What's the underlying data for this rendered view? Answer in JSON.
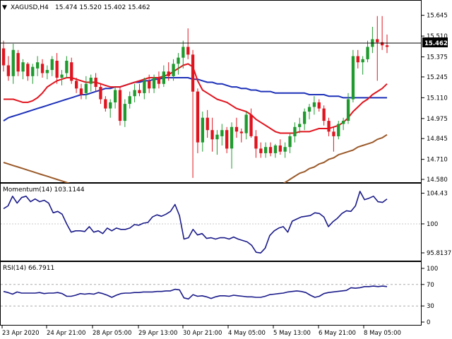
{
  "header": {
    "symbol": "XAGUSD,H4",
    "ohlc": "15.474 15.520 15.402 15.462",
    "dropdown_glyph": "▼"
  },
  "colors": {
    "bull": "#1f9a2e",
    "bear": "#e0141e",
    "sma_blue": "#1d31b8",
    "sma_red": "#e0141e",
    "sma_brown": "#9a5a2a",
    "indicator": "#1a1a8a",
    "grid": "#c8c8c8",
    "price_line": "#000000"
  },
  "price_panel": {
    "current_price": "15.462",
    "y_labels": [
      "15.645",
      "15.510",
      "15.375",
      "15.245",
      "15.110",
      "14.975",
      "14.845",
      "14.710",
      "14.580"
    ]
  },
  "momentum_panel": {
    "label": "Momentum(14) 103.1144",
    "y_labels": [
      "104.43",
      "100",
      "95.8137"
    ]
  },
  "rsi_panel": {
    "label": "RSI(14) 66.7911",
    "y_labels": [
      "100",
      "70",
      "30",
      "0"
    ]
  },
  "x_labels": [
    "23 Apr 2020",
    "24 Apr 21:00",
    "28 Apr 05:00",
    "29 Apr 13:00",
    "30 Apr 21:00",
    "4 May 05:00",
    "5 May 13:00",
    "6 May 21:00",
    "8 May 05:00"
  ],
  "chart_data": [
    {
      "type": "candlestick",
      "title": "XAGUSD,H4",
      "ylim": [
        14.58,
        15.68
      ],
      "candles": [
        [
          15.43,
          15.48,
          15.28,
          15.32
        ],
        [
          15.32,
          15.38,
          15.22,
          15.25
        ],
        [
          15.25,
          15.46,
          15.2,
          15.42
        ],
        [
          15.4,
          15.42,
          15.25,
          15.28
        ],
        [
          15.28,
          15.36,
          15.23,
          15.34
        ],
        [
          15.33,
          15.34,
          15.22,
          15.25
        ],
        [
          15.25,
          15.33,
          15.2,
          15.31
        ],
        [
          15.3,
          15.38,
          15.25,
          15.34
        ],
        [
          15.33,
          15.36,
          15.24,
          15.27
        ],
        [
          15.27,
          15.32,
          15.23,
          15.29
        ],
        [
          15.29,
          15.38,
          15.25,
          15.36
        ],
        [
          15.35,
          15.4,
          15.2,
          15.24
        ],
        [
          15.24,
          15.29,
          15.19,
          15.26
        ],
        [
          15.27,
          15.38,
          15.24,
          15.35
        ],
        [
          15.34,
          15.37,
          15.2,
          15.22
        ],
        [
          15.22,
          15.24,
          15.14,
          15.17
        ],
        [
          15.17,
          15.2,
          15.1,
          15.13
        ],
        [
          15.14,
          15.25,
          15.1,
          15.2
        ],
        [
          15.2,
          15.26,
          15.15,
          15.24
        ],
        [
          15.24,
          15.27,
          15.15,
          15.18
        ],
        [
          15.18,
          15.2,
          15.07,
          15.1
        ],
        [
          15.1,
          15.12,
          15.02,
          15.04
        ],
        [
          15.04,
          15.1,
          14.98,
          15.08
        ],
        [
          15.08,
          15.18,
          15.04,
          15.16
        ],
        [
          15.16,
          15.18,
          14.93,
          14.96
        ],
        [
          14.96,
          15.1,
          14.92,
          15.07
        ],
        [
          15.07,
          15.15,
          15.04,
          15.12
        ],
        [
          15.12,
          15.2,
          15.08,
          15.16
        ],
        [
          15.16,
          15.2,
          15.12,
          15.14
        ],
        [
          15.14,
          15.24,
          15.1,
          15.22
        ],
        [
          15.22,
          15.26,
          15.14,
          15.17
        ],
        [
          15.17,
          15.26,
          15.14,
          15.24
        ],
        [
          15.24,
          15.28,
          15.17,
          15.2
        ],
        [
          15.2,
          15.32,
          15.18,
          15.28
        ],
        [
          15.28,
          15.34,
          15.22,
          15.25
        ],
        [
          15.25,
          15.36,
          15.22,
          15.33
        ],
        [
          15.33,
          15.4,
          15.26,
          15.37
        ],
        [
          15.37,
          15.48,
          15.3,
          15.44
        ],
        [
          15.44,
          15.56,
          15.36,
          15.39
        ],
        [
          15.39,
          15.42,
          14.59,
          15.15
        ],
        [
          15.15,
          15.17,
          14.75,
          14.82
        ],
        [
          14.82,
          15.02,
          14.76,
          14.98
        ],
        [
          14.98,
          15.03,
          14.85,
          14.9
        ],
        [
          14.9,
          14.98,
          14.76,
          14.84
        ],
        [
          14.84,
          14.9,
          14.74,
          14.87
        ],
        [
          14.86,
          14.94,
          14.8,
          14.9
        ],
        [
          14.9,
          14.92,
          14.75,
          14.78
        ],
        [
          14.78,
          14.95,
          14.65,
          14.92
        ],
        [
          14.92,
          14.98,
          14.85,
          14.89
        ],
        [
          14.89,
          14.91,
          14.82,
          14.88
        ],
        [
          14.88,
          15.02,
          14.84,
          15.0
        ],
        [
          15.0,
          15.04,
          14.85,
          14.86
        ],
        [
          14.86,
          14.9,
          14.72,
          14.78
        ],
        [
          14.78,
          14.82,
          14.72,
          14.75
        ],
        [
          14.75,
          14.82,
          14.72,
          14.79
        ],
        [
          14.79,
          14.82,
          14.73,
          14.75
        ],
        [
          14.75,
          14.81,
          14.72,
          14.8
        ],
        [
          14.8,
          14.84,
          14.74,
          14.76
        ],
        [
          14.76,
          14.82,
          14.72,
          14.79
        ],
        [
          14.79,
          14.88,
          14.75,
          14.86
        ],
        [
          14.86,
          14.95,
          14.82,
          14.92
        ],
        [
          14.92,
          14.98,
          14.88,
          14.94
        ],
        [
          14.94,
          15.04,
          14.9,
          15.02
        ],
        [
          15.02,
          15.07,
          14.97,
          15.05
        ],
        [
          15.05,
          15.12,
          15.0,
          15.08
        ],
        [
          15.08,
          15.1,
          15.02,
          15.04
        ],
        [
          15.04,
          15.06,
          14.93,
          14.96
        ],
        [
          14.96,
          14.98,
          14.86,
          14.89
        ],
        [
          14.89,
          14.92,
          14.76,
          14.86
        ],
        [
          14.86,
          14.96,
          14.84,
          14.94
        ],
        [
          14.94,
          14.98,
          14.9,
          14.96
        ],
        [
          14.96,
          15.14,
          14.94,
          15.1
        ],
        [
          15.1,
          15.42,
          15.08,
          15.38
        ],
        [
          15.38,
          15.42,
          15.3,
          15.34
        ],
        [
          15.34,
          15.38,
          15.26,
          15.36
        ],
        [
          15.36,
          15.48,
          15.34,
          15.44
        ],
        [
          15.44,
          15.57,
          15.4,
          15.49
        ],
        [
          15.49,
          15.64,
          15.22,
          15.47
        ],
        [
          15.47,
          15.64,
          15.42,
          15.45
        ],
        [
          15.45,
          15.52,
          15.4,
          15.44
        ]
      ],
      "sma_short": [
        15.1,
        15.1,
        15.1,
        15.09,
        15.08,
        15.08,
        15.09,
        15.11,
        15.14,
        15.18,
        15.2,
        15.22,
        15.23,
        15.24,
        15.24,
        15.23,
        15.22,
        15.21,
        15.21,
        15.21,
        15.2,
        15.19,
        15.18,
        15.18,
        15.18,
        15.19,
        15.2,
        15.21,
        15.22,
        15.23,
        15.24,
        15.24,
        15.24,
        15.25,
        15.26,
        15.28,
        15.3,
        15.32,
        15.33,
        15.31,
        15.22,
        15.16,
        15.14,
        15.12,
        15.1,
        15.09,
        15.08,
        15.06,
        15.04,
        15.03,
        15.02,
        15.0,
        14.97,
        14.95,
        14.93,
        14.91,
        14.89,
        14.88,
        14.88,
        14.88,
        14.88,
        14.89,
        14.89,
        14.89,
        14.9,
        14.91,
        14.91,
        14.91,
        14.92,
        14.93,
        14.95,
        14.98,
        15.02,
        15.05,
        15.08,
        15.1,
        15.13,
        15.15,
        15.17,
        15.2
      ],
      "sma_mid": [
        14.96,
        14.98,
        14.99,
        15.0,
        15.01,
        15.02,
        15.03,
        15.04,
        15.05,
        15.06,
        15.07,
        15.08,
        15.09,
        15.1,
        15.11,
        15.12,
        15.13,
        15.13,
        15.14,
        15.15,
        15.16,
        15.17,
        15.17,
        15.18,
        15.18,
        15.19,
        15.2,
        15.21,
        15.21,
        15.22,
        15.22,
        15.23,
        15.23,
        15.24,
        15.24,
        15.24,
        15.24,
        15.24,
        15.24,
        15.23,
        15.23,
        15.22,
        15.21,
        15.21,
        15.2,
        15.2,
        15.19,
        15.18,
        15.18,
        15.17,
        15.17,
        15.16,
        15.16,
        15.15,
        15.15,
        15.15,
        15.14,
        15.14,
        15.14,
        15.14,
        15.14,
        15.14,
        15.14,
        15.13,
        15.13,
        15.13,
        15.13,
        15.12,
        15.12,
        15.12,
        15.11,
        15.11,
        15.11,
        15.11,
        15.11,
        15.11,
        15.11,
        15.11,
        15.11,
        15.11
      ],
      "sma_long": [
        14.69,
        14.68,
        14.67,
        14.66,
        14.65,
        14.64,
        14.63,
        14.62,
        14.61,
        14.6,
        14.59,
        14.58,
        14.57,
        14.56,
        14.55,
        14.54,
        14.53,
        14.52,
        14.51,
        14.5,
        14.5,
        14.49,
        14.49,
        14.48,
        14.48,
        14.47,
        14.47,
        14.47,
        14.46,
        14.46,
        14.46,
        14.46,
        14.46,
        14.46,
        14.46,
        14.46,
        14.46,
        14.46,
        14.46,
        14.46,
        14.46,
        14.46,
        14.46,
        14.46,
        14.46,
        14.46,
        14.46,
        14.46,
        14.46,
        14.46,
        14.46,
        14.46,
        14.47,
        14.48,
        14.49,
        14.5,
        14.52,
        14.54,
        14.56,
        14.58,
        14.6,
        14.62,
        14.63,
        14.65,
        14.66,
        14.68,
        14.69,
        14.71,
        14.72,
        14.74,
        14.75,
        14.76,
        14.77,
        14.79,
        14.8,
        14.81,
        14.82,
        14.84,
        14.85,
        14.87
      ]
    },
    {
      "type": "line",
      "title": "Momentum(14) 103.1144",
      "ylim": [
        95.0,
        105.2
      ],
      "values": [
        102.2,
        102.6,
        104.0,
        103.0,
        103.8,
        104.0,
        103.2,
        103.6,
        103.2,
        103.4,
        103.0,
        101.6,
        101.8,
        101.4,
        100.0,
        98.8,
        99.0,
        99.0,
        98.9,
        99.6,
        98.8,
        99.0,
        98.6,
        99.4,
        99.0,
        99.4,
        99.2,
        99.2,
        99.4,
        99.9,
        99.8,
        100.1,
        100.2,
        101.0,
        101.3,
        101.1,
        101.4,
        101.8,
        102.8,
        101.2,
        97.8,
        98.0,
        99.2,
        98.4,
        98.6,
        97.9,
        98.0,
        97.8,
        98.0,
        98.0,
        97.8,
        98.1,
        97.8,
        97.6,
        97.4,
        96.9,
        95.9,
        95.8,
        96.5,
        98.3,
        99.0,
        99.4,
        99.6,
        98.8,
        100.4,
        100.7,
        101.0,
        101.1,
        101.2,
        101.6,
        101.5,
        101.0,
        99.6,
        100.3,
        100.8,
        101.5,
        101.9,
        101.8,
        102.6,
        104.7,
        103.5,
        103.7,
        104.0,
        103.2,
        103.1,
        103.6
      ]
    },
    {
      "type": "line",
      "title": "RSI(14) 66.7911",
      "ylim": [
        0,
        100
      ],
      "levels": [
        70,
        30
      ],
      "values": [
        57,
        55,
        52,
        56,
        54,
        54,
        54,
        54,
        55,
        53,
        54,
        54,
        55,
        53,
        48,
        48,
        50,
        53,
        52,
        53,
        52,
        55,
        53,
        50,
        46,
        50,
        53,
        54,
        54,
        55,
        55,
        56,
        56,
        56,
        57,
        57,
        58,
        58,
        61,
        60,
        45,
        43,
        51,
        48,
        49,
        47,
        44,
        47,
        49,
        49,
        48,
        50,
        49,
        48,
        47,
        47,
        46,
        46,
        48,
        51,
        52,
        53,
        54,
        56,
        57,
        58,
        57,
        55,
        50,
        46,
        48,
        53,
        55,
        56,
        57,
        58,
        59,
        64,
        63,
        64,
        66,
        66,
        67,
        66,
        67,
        66
      ]
    }
  ]
}
